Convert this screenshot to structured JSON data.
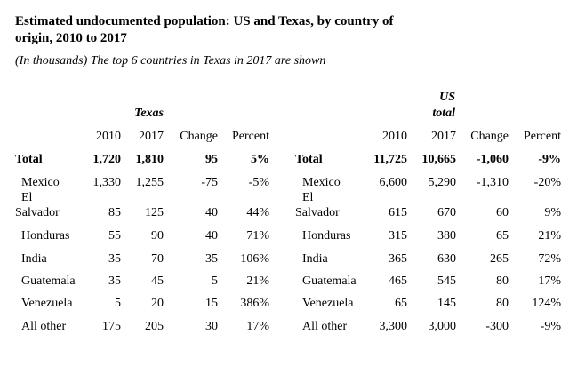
{
  "title": "Estimated undocumented population: US and Texas, by country of origin, 2010 to 2017",
  "subtitle": "(In thousands) The top 6 countries in Texas in 2017 are shown",
  "texas": {
    "group_label": "Texas",
    "headers": [
      "2010",
      "2017",
      "Change",
      "Percent"
    ],
    "rows": [
      {
        "country": "Total",
        "values": [
          "1,720",
          "1,810",
          "95",
          "5%"
        ]
      },
      {
        "country": "Mexico",
        "values": [
          "1,330",
          "1,255",
          "-75",
          "-5%"
        ]
      },
      {
        "country": "El Salvador",
        "values": [
          "85",
          "125",
          "40",
          "44%"
        ]
      },
      {
        "country": "Honduras",
        "values": [
          "55",
          "90",
          "40",
          "71%"
        ]
      },
      {
        "country": "India",
        "values": [
          "35",
          "70",
          "35",
          "106%"
        ]
      },
      {
        "country": "Guatemala",
        "values": [
          "35",
          "45",
          "5",
          "21%"
        ]
      },
      {
        "country": "Venezuela",
        "values": [
          "5",
          "20",
          "15",
          "386%"
        ]
      },
      {
        "country": "All other",
        "values": [
          "175",
          "205",
          "30",
          "17%"
        ]
      }
    ]
  },
  "us": {
    "group_label_line1": "US",
    "group_label_line2": "total",
    "headers": [
      "2010",
      "2017",
      "Change",
      "Percent"
    ],
    "rows": [
      {
        "country": "Total",
        "values": [
          "11,725",
          "10,665",
          "-1,060",
          "-9%"
        ]
      },
      {
        "country": "Mexico",
        "values": [
          "6,600",
          "5,290",
          "-1,310",
          "-20%"
        ]
      },
      {
        "country": "El Salvador",
        "values": [
          "615",
          "670",
          "60",
          "9%"
        ]
      },
      {
        "country": "Honduras",
        "values": [
          "315",
          "380",
          "65",
          "21%"
        ]
      },
      {
        "country": "India",
        "values": [
          "365",
          "630",
          "265",
          "72%"
        ]
      },
      {
        "country": "Guatemala",
        "values": [
          "465",
          "545",
          "80",
          "17%"
        ]
      },
      {
        "country": "Venezuela",
        "values": [
          "65",
          "145",
          "80",
          "124%"
        ]
      },
      {
        "country": "All other",
        "values": [
          "3,300",
          "3,000",
          "-300",
          "-9%"
        ]
      }
    ]
  }
}
